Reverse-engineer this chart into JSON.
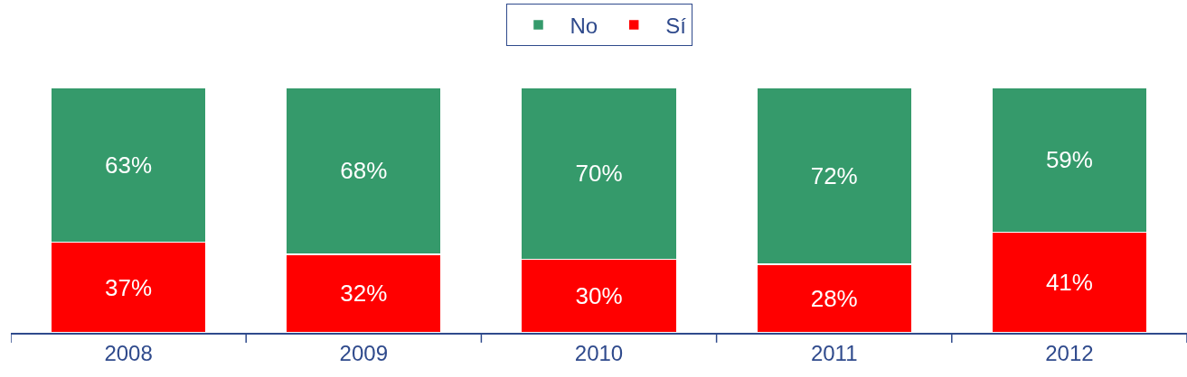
{
  "chart_data": {
    "type": "bar",
    "stacked": true,
    "categories": [
      "2008",
      "2009",
      "2010",
      "2011",
      "2012"
    ],
    "series": [
      {
        "name": "Sí",
        "color": "#ff0000",
        "values": [
          37,
          32,
          30,
          28,
          41
        ],
        "value_labels": [
          "37%",
          "32%",
          "30%",
          "28%",
          "41%"
        ]
      },
      {
        "name": "No",
        "color": "#359a6b",
        "values": [
          63,
          68,
          70,
          72,
          59
        ],
        "value_labels": [
          "63%",
          "68%",
          "70%",
          "72%",
          "59%"
        ]
      }
    ],
    "legend": "top"
  }
}
